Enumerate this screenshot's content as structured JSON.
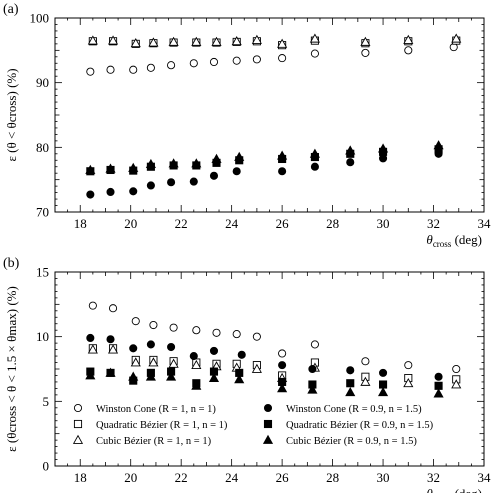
{
  "chart_data": [
    {
      "type": "scatter",
      "panel_label": "(a)",
      "xlabel_main": "θ",
      "xlabel_sub": "cross",
      "xlabel_unit": "(deg)",
      "ylabel": "ε (θ < θcross) (%)",
      "xlim": [
        17,
        34
      ],
      "ylim": [
        70,
        100
      ],
      "xticks": [
        18,
        20,
        22,
        24,
        26,
        28,
        30,
        32,
        34
      ],
      "yticks": [
        70,
        80,
        90,
        100
      ],
      "series": [
        {
          "marker": "open-circle",
          "x": [
            18.4,
            19.2,
            20.1,
            20.8,
            21.6,
            22.5,
            23.3,
            24.2,
            25.0,
            26.0,
            27.3,
            29.3,
            31.0,
            32.8
          ],
          "y": [
            91.7,
            92.0,
            92.0,
            92.3,
            92.7,
            93.0,
            93.2,
            93.4,
            93.6,
            93.8,
            94.5,
            94.6,
            95.0,
            95.5
          ]
        },
        {
          "marker": "open-square",
          "x": [
            18.5,
            19.3,
            20.2,
            20.9,
            21.7,
            22.6,
            23.4,
            24.2,
            25.0,
            26.0,
            27.3,
            29.3,
            31.0,
            32.9
          ],
          "y": [
            96.4,
            96.4,
            96.0,
            96.1,
            96.2,
            96.2,
            96.2,
            96.3,
            96.4,
            95.8,
            96.5,
            96.1,
            96.4,
            96.5
          ]
        },
        {
          "marker": "open-triangle",
          "x": [
            18.5,
            19.3,
            20.2,
            20.9,
            21.7,
            22.6,
            23.4,
            24.2,
            25.0,
            26.0,
            27.3,
            29.3,
            31.0,
            32.9
          ],
          "y": [
            96.5,
            96.5,
            96.1,
            96.2,
            96.3,
            96.3,
            96.3,
            96.4,
            96.6,
            96.0,
            96.8,
            96.3,
            96.6,
            96.8
          ]
        },
        {
          "marker": "filled-circle",
          "x": [
            18.4,
            19.2,
            20.1,
            20.8,
            21.6,
            22.5,
            23.3,
            24.2,
            26.0,
            27.3,
            28.7,
            30.0,
            32.2
          ],
          "y": [
            72.7,
            73.1,
            73.2,
            74.1,
            74.6,
            74.7,
            75.6,
            76.3,
            76.3,
            77.0,
            77.7,
            78.3,
            79.0
          ]
        },
        {
          "marker": "filled-square",
          "x": [
            18.4,
            19.2,
            20.1,
            20.8,
            21.7,
            22.6,
            23.4,
            24.3,
            26.0,
            27.3,
            28.7,
            30.0,
            32.2
          ],
          "y": [
            76.3,
            76.5,
            76.4,
            77.0,
            77.2,
            77.2,
            77.6,
            78.0,
            78.2,
            78.5,
            79.0,
            79.3,
            79.7
          ]
        },
        {
          "marker": "filled-triangle",
          "x": [
            18.4,
            19.2,
            20.1,
            20.8,
            21.7,
            22.6,
            23.4,
            24.3,
            26.0,
            27.3,
            28.7,
            30.0,
            32.2
          ],
          "y": [
            76.5,
            76.7,
            76.8,
            77.4,
            77.5,
            77.5,
            78.2,
            78.5,
            78.7,
            79.0,
            79.5,
            79.8,
            80.3
          ]
        }
      ]
    },
    {
      "type": "scatter",
      "panel_label": "(b)",
      "xlabel_main": "θ",
      "xlabel_sub": "cross",
      "xlabel_unit": "(deg)",
      "ylabel": "ε (θcross < θ < 1.5 × θmax) (%)",
      "xlim": [
        17,
        34
      ],
      "ylim": [
        0,
        15
      ],
      "xticks": [
        18,
        20,
        22,
        24,
        26,
        28,
        30,
        32,
        34
      ],
      "yticks": [
        0,
        5,
        10,
        15
      ],
      "legend": [
        {
          "marker": "open-circle",
          "label": "Winston Cone (R = 1, n = 1)"
        },
        {
          "marker": "open-square",
          "label": "Quadratic Bézier (R = 1, n = 1)"
        },
        {
          "marker": "open-triangle",
          "label": "Cubic Bézier (R = 1, n = 1)"
        },
        {
          "marker": "filled-circle",
          "label": "Winston Cone (R = 0.9, n = 1.5)"
        },
        {
          "marker": "filled-square",
          "label": "Quadratic Bézier (R = 0.9, n = 1.5)"
        },
        {
          "marker": "filled-triangle",
          "label": "Cubic Bézier (R = 0.9, n = 1.5)"
        }
      ],
      "series": [
        {
          "marker": "open-circle",
          "x": [
            18.5,
            19.3,
            20.2,
            20.9,
            21.7,
            22.6,
            23.4,
            24.2,
            25.0,
            26.0,
            27.3,
            29.3,
            31.0,
            32.9
          ],
          "y": [
            12.4,
            12.2,
            11.2,
            10.9,
            10.7,
            10.5,
            10.3,
            10.2,
            10.0,
            8.7,
            9.4,
            8.1,
            7.8,
            7.5
          ]
        },
        {
          "marker": "open-square",
          "x": [
            18.5,
            19.3,
            20.2,
            20.9,
            21.7,
            22.6,
            23.4,
            24.2,
            25.0,
            26.0,
            27.3,
            29.3,
            31.0,
            32.9
          ],
          "y": [
            9.1,
            9.1,
            8.2,
            8.2,
            8.1,
            8.0,
            7.9,
            7.9,
            7.8,
            7.0,
            8.0,
            6.9,
            6.8,
            6.7
          ]
        },
        {
          "marker": "open-triangle",
          "x": [
            18.5,
            19.3,
            20.2,
            20.9,
            21.7,
            22.6,
            23.4,
            24.2,
            25.0,
            26.0,
            27.3,
            29.3,
            31.0,
            32.9
          ],
          "y": [
            9.0,
            9.0,
            8.0,
            8.0,
            7.9,
            7.8,
            7.7,
            7.6,
            7.5,
            6.8,
            7.6,
            6.5,
            6.4,
            6.3
          ]
        },
        {
          "marker": "filled-circle",
          "x": [
            18.4,
            19.2,
            20.1,
            20.8,
            21.6,
            22.5,
            23.3,
            24.4,
            26.0,
            27.2,
            28.7,
            30.0,
            32.2
          ],
          "y": [
            9.9,
            9.8,
            9.1,
            9.4,
            9.2,
            8.5,
            8.9,
            8.6,
            7.8,
            7.5,
            7.4,
            7.2,
            6.9
          ]
        },
        {
          "marker": "filled-square",
          "x": [
            18.4,
            19.2,
            20.1,
            20.8,
            21.6,
            22.6,
            23.3,
            24.3,
            26.0,
            27.2,
            28.7,
            30.0,
            32.2
          ],
          "y": [
            7.3,
            7.2,
            6.6,
            7.2,
            7.3,
            6.4,
            7.3,
            7.2,
            6.5,
            6.3,
            6.4,
            6.3,
            6.2
          ]
        },
        {
          "marker": "filled-triangle",
          "x": [
            18.4,
            19.2,
            20.1,
            20.8,
            21.6,
            22.6,
            23.3,
            24.3,
            26.0,
            27.2,
            28.7,
            30.0,
            32.2
          ],
          "y": [
            7.0,
            7.2,
            6.9,
            6.9,
            6.9,
            6.2,
            6.8,
            6.7,
            6.0,
            5.9,
            5.7,
            5.7,
            5.6
          ]
        }
      ]
    }
  ]
}
